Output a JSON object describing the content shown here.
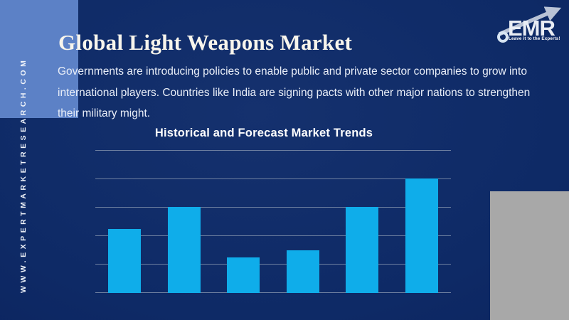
{
  "branding": {
    "logo_text": "EMR",
    "logo_tagline": "Leave it to the Experts!",
    "website": "WWW.EXPERTMARKETRESEARCH.COM"
  },
  "header": {
    "title": "Global Light Weapons Market",
    "description_lines": [
      "Governments are introducing policies to enable public and private sector companies to grow into",
      "international players. Countries like India are signing pacts with other major nations to strengthen",
      "their military might."
    ]
  },
  "chart_data": {
    "type": "bar",
    "title": "Historical and Forecast Market Trends",
    "values": [
      2.25,
      3,
      1.25,
      1.5,
      3,
      4
    ],
    "x_tick_labels": [],
    "xlabel": "",
    "ylabel": "",
    "ylim": [
      0,
      5
    ],
    "gridline_count": 6,
    "grid": "horizontal",
    "legend": "none",
    "bar_color": "#0fadea",
    "grid_color": "#6e80a0"
  },
  "colors": {
    "background_navy": "#0e2a66",
    "accent_rect_blue": "#5c81c6",
    "gray_rect": "#a8a8a8",
    "title_text": "#f8f5ec",
    "body_text": "#e9eef8",
    "bar_blue": "#0fadea"
  }
}
